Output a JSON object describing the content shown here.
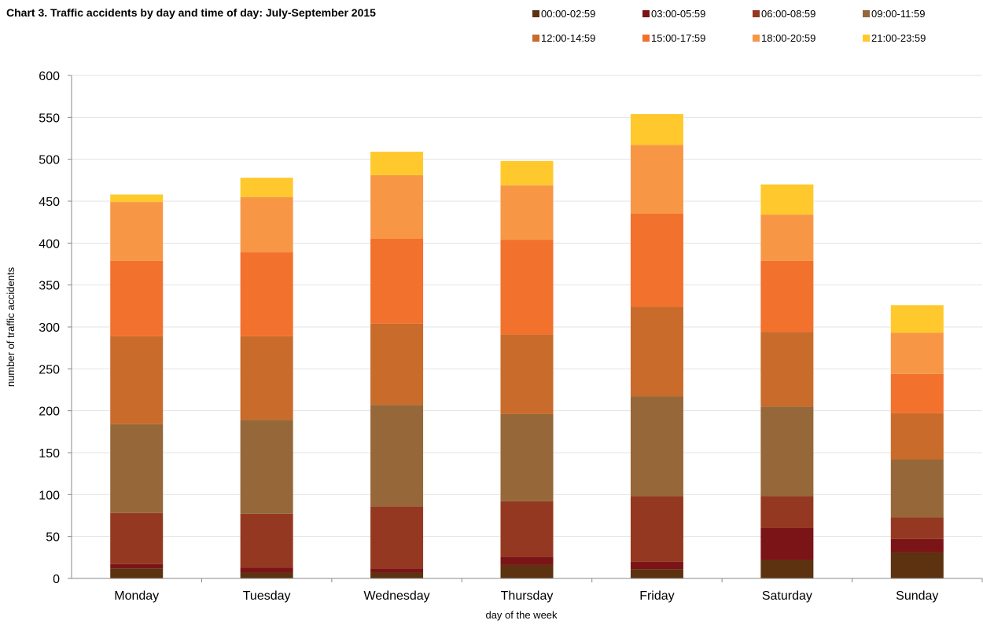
{
  "chart_data": {
    "type": "bar",
    "stacked": true,
    "title": "Chart 3. Traffic accidents by day and time of day: July-September 2015",
    "xlabel": "day of the week",
    "ylabel": "number of traffic accidents",
    "ylim": [
      0,
      600
    ],
    "yticks": [
      0,
      50,
      100,
      150,
      200,
      250,
      300,
      350,
      400,
      450,
      500,
      550,
      600
    ],
    "grid": true,
    "legend_position": "top-right",
    "categories": [
      "Monday",
      "Tuesday",
      "Wednesday",
      "Thursday",
      "Friday",
      "Saturday",
      "Sunday"
    ],
    "series": [
      {
        "name": "00:00-02:59",
        "color": "#5C3211",
        "values": [
          12,
          7,
          7,
          16,
          11,
          22,
          31
        ]
      },
      {
        "name": "03:00-05:59",
        "color": "#7B1416",
        "values": [
          5,
          6,
          5,
          10,
          9,
          38,
          16
        ]
      },
      {
        "name": "06:00-08:59",
        "color": "#953821",
        "values": [
          61,
          64,
          74,
          66,
          78,
          38,
          26
        ]
      },
      {
        "name": "09:00-11:59",
        "color": "#956739",
        "values": [
          106,
          112,
          121,
          104,
          119,
          107,
          69
        ]
      },
      {
        "name": "12:00-14:59",
        "color": "#C96B2A",
        "values": [
          105,
          100,
          97,
          95,
          107,
          89,
          55
        ]
      },
      {
        "name": "15:00-17:59",
        "color": "#F2712C",
        "values": [
          90,
          100,
          101,
          113,
          111,
          85,
          47
        ]
      },
      {
        "name": "18:00-20:59",
        "color": "#F79746",
        "values": [
          70,
          66,
          76,
          65,
          82,
          55,
          49
        ]
      },
      {
        "name": "21:00-23:59",
        "color": "#FFC92E",
        "values": [
          9,
          23,
          28,
          29,
          37,
          36,
          33
        ]
      }
    ]
  }
}
